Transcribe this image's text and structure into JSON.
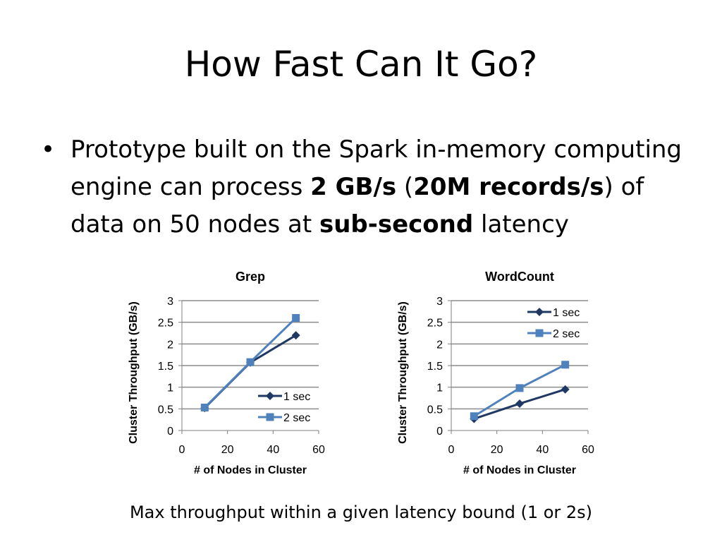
{
  "slide": {
    "title": "How Fast Can It Go?",
    "bullet_symbol": "•",
    "bullet": {
      "p1": "Prototype built on the Spark in-memory computing engine can process ",
      "b1": "2 GB/s",
      "p2": " (",
      "b2": "20M records/s",
      "p3": ") of data on 50 nodes at ",
      "b3": "sub-second",
      "p4": " latency"
    },
    "caption": "Max throughput within a given latency bound (1 or 2s)"
  },
  "chart_data": [
    {
      "type": "line",
      "title": "Grep",
      "xlabel": "# of Nodes in Cluster",
      "ylabel": "Cluster Throughput (GB/s)",
      "xlim": [
        0,
        60
      ],
      "ylim": [
        0,
        3
      ],
      "xticks": [
        0,
        20,
        40,
        60
      ],
      "yticks": [
        0,
        0.5,
        1,
        1.5,
        2,
        2.5,
        3
      ],
      "grid": true,
      "legend": "bottom-right",
      "series": [
        {
          "name": "1 sec",
          "color": "#1f3864",
          "marker": "diamond",
          "x": [
            10,
            30,
            50
          ],
          "y": [
            0.52,
            1.57,
            2.2
          ]
        },
        {
          "name": "2 sec",
          "color": "#4f81bd",
          "marker": "square",
          "x": [
            10,
            30,
            50
          ],
          "y": [
            0.53,
            1.58,
            2.6
          ]
        }
      ]
    },
    {
      "type": "line",
      "title": "WordCount",
      "xlabel": "# of Nodes in Cluster",
      "ylabel": "Cluster Throughput (GB/s)",
      "xlim": [
        0,
        60
      ],
      "ylim": [
        0,
        3
      ],
      "xticks": [
        0,
        20,
        40,
        60
      ],
      "yticks": [
        0,
        0.5,
        1,
        1.5,
        2,
        2.5,
        3
      ],
      "grid": true,
      "legend": "top-right",
      "series": [
        {
          "name": "1 sec",
          "color": "#1f3864",
          "marker": "diamond",
          "x": [
            10,
            30,
            50
          ],
          "y": [
            0.27,
            0.62,
            0.95
          ]
        },
        {
          "name": "2 sec",
          "color": "#4f81bd",
          "marker": "square",
          "x": [
            10,
            30,
            50
          ],
          "y": [
            0.33,
            0.98,
            1.52
          ]
        }
      ]
    }
  ]
}
